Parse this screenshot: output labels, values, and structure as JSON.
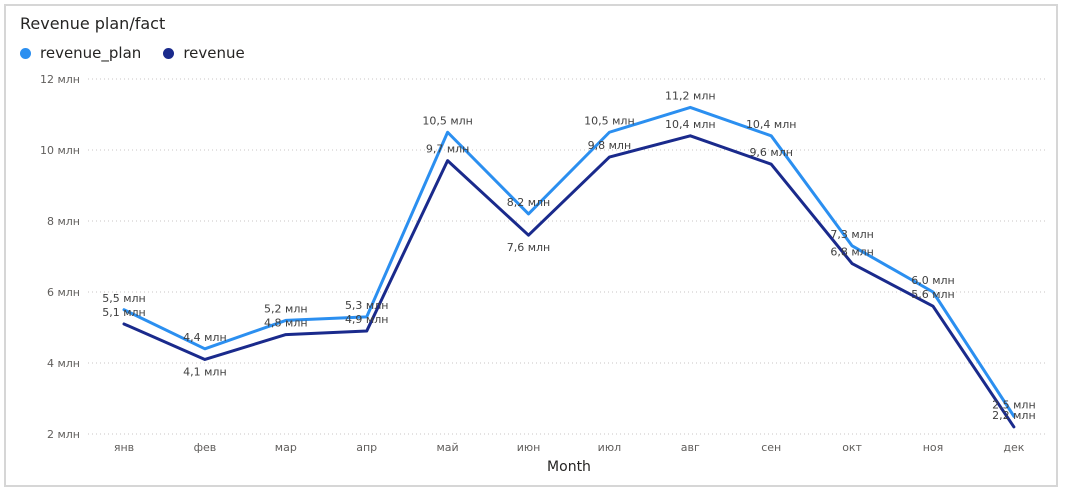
{
  "chart_data": {
    "type": "line",
    "title": "Revenue plan/fact",
    "xlabel": "Month",
    "ylabel": "",
    "categories": [
      "янв",
      "фев",
      "мар",
      "апр",
      "май",
      "июн",
      "июл",
      "авг",
      "сен",
      "окт",
      "ноя",
      "дек"
    ],
    "ylim": [
      2,
      12
    ],
    "yticks": [
      2,
      4,
      6,
      8,
      10,
      12
    ],
    "ytick_labels": [
      "2 млн",
      "4 млн",
      "6 млн",
      "8 млн",
      "10 млн",
      "12 млн"
    ],
    "grid": true,
    "legend_position": "top-left",
    "series": [
      {
        "name": "revenue_plan",
        "color": "#2b8ff0",
        "values": [
          5.5,
          4.4,
          5.2,
          5.3,
          10.5,
          8.2,
          10.5,
          11.2,
          10.4,
          7.3,
          6.0,
          2.5
        ],
        "labels": [
          "5,5 млн",
          "4,4 млн",
          "5,2 млн",
          "5,3 млн",
          "10,5 млн",
          "8,2 млн",
          "10,5 млн",
          "11,2 млн",
          "10,4 млн",
          "7,3 млн",
          "6,0 млн",
          "2,5 млн"
        ]
      },
      {
        "name": "revenue",
        "color": "#1a2a8c",
        "values": [
          5.1,
          4.1,
          4.8,
          4.9,
          9.7,
          7.6,
          9.8,
          10.4,
          9.6,
          6.8,
          5.6,
          2.2
        ],
        "labels": [
          "5,1 млн",
          "4,1 млн",
          "4,8 млн",
          "4,9 млн",
          "9,7 млн",
          "7,6 млн",
          "9,8 млн",
          "10,4 млн",
          "9,6 млн",
          "6,8 млн",
          "5,6 млн",
          "2,2 млн"
        ]
      }
    ]
  }
}
